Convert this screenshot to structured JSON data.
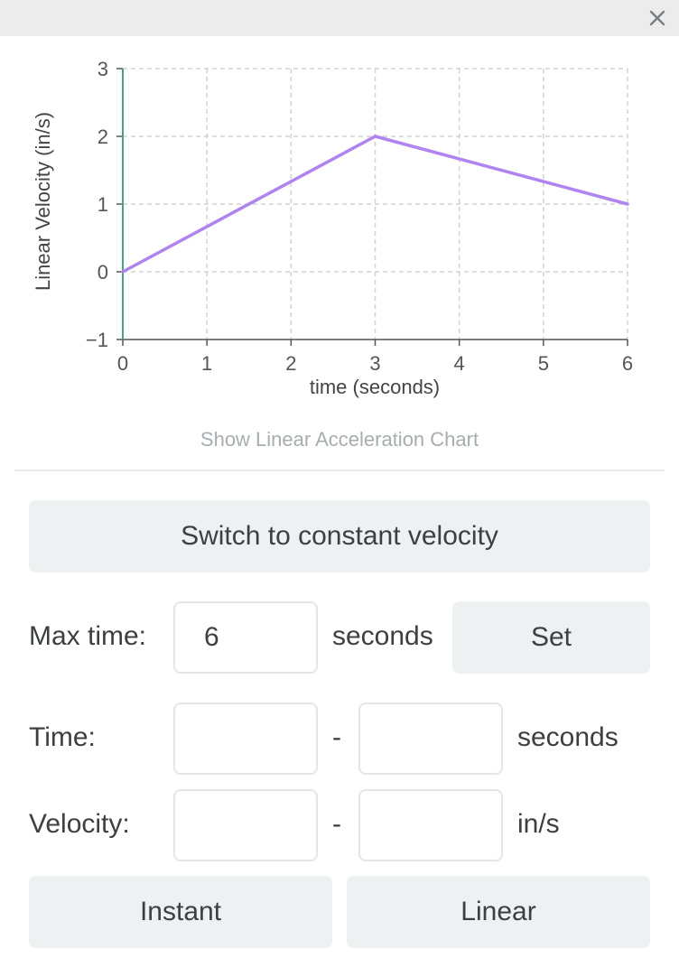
{
  "window": {
    "close_icon": "close-icon"
  },
  "chart_data": {
    "type": "line",
    "xlabel": "time (seconds)",
    "ylabel": "Linear Velocity (in/s)",
    "xlim": [
      0,
      6
    ],
    "ylim": [
      -1,
      3
    ],
    "x_ticks": [
      "0",
      "1",
      "2",
      "3",
      "4",
      "5",
      "6"
    ],
    "y_ticks": [
      "3",
      "2",
      "1",
      "0",
      "−1"
    ],
    "grid": true,
    "series": [
      {
        "color": "#b084f0",
        "x": [
          0,
          3,
          6
        ],
        "y": [
          0,
          2,
          1
        ]
      }
    ]
  },
  "colors": {
    "y_axis": "#4aa383",
    "line": "#b084f0",
    "button_bg": "#eef1f2"
  },
  "chart_toggle_label": "Show Linear Acceleration Chart",
  "controls": {
    "switch_label": "Switch to constant velocity",
    "max_time": {
      "label": "Max time:",
      "value": "6",
      "unit": "seconds",
      "set_label": "Set"
    },
    "time": {
      "label": "Time:",
      "start": "",
      "dash": "-",
      "end": "",
      "unit": "seconds"
    },
    "velocity": {
      "label": "Velocity:",
      "start": "",
      "dash": "-",
      "end": "",
      "unit": "in/s"
    },
    "instant_label": "Instant",
    "linear_label": "Linear"
  }
}
